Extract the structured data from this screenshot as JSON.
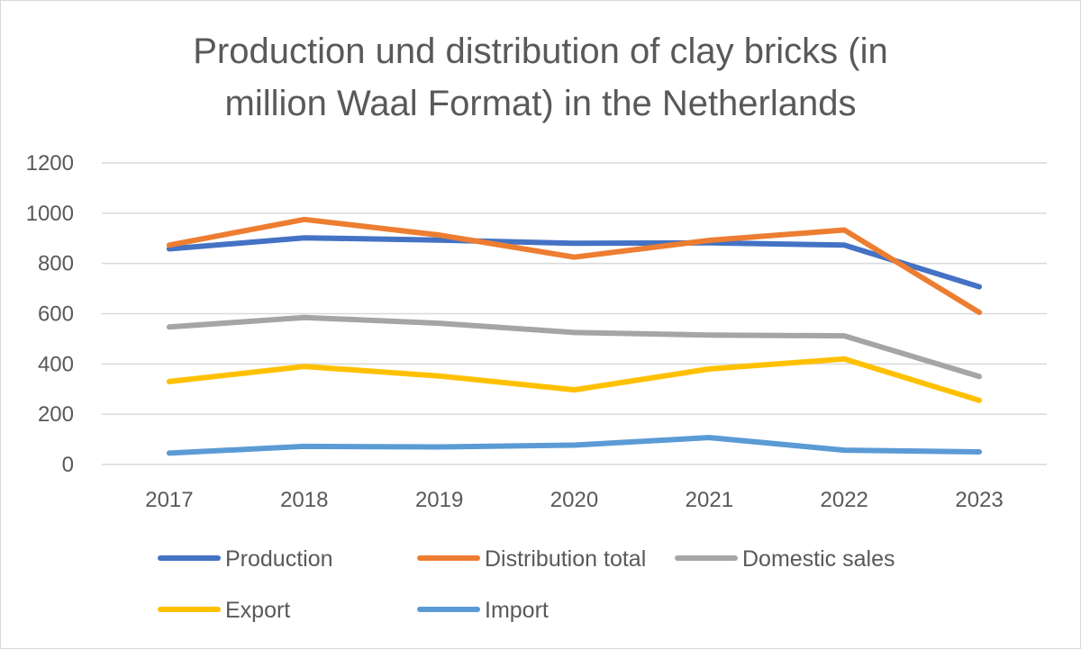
{
  "chart_data": {
    "type": "line",
    "title_lines": [
      "Production und distribution of clay bricks (in",
      "million Waal Format) in the Netherlands"
    ],
    "categories": [
      "2017",
      "2018",
      "2019",
      "2020",
      "2021",
      "2022",
      "2023"
    ],
    "y_ticks": [
      "0",
      "200",
      "400",
      "600",
      "800",
      "1000",
      "1200"
    ],
    "ylim": [
      0,
      1200
    ],
    "grid": true,
    "legend_position": "bottom",
    "series": [
      {
        "name": "Production",
        "color": "#4472c4",
        "values": [
          858,
          902,
          893,
          880,
          882,
          873,
          707
        ]
      },
      {
        "name": "Distribution total",
        "color": "#ed7d31",
        "values": [
          873,
          975,
          913,
          825,
          892,
          933,
          605
        ]
      },
      {
        "name": "Domestic sales",
        "color": "#a5a5a5",
        "values": [
          547,
          585,
          562,
          525,
          515,
          512,
          350
        ]
      },
      {
        "name": "Export",
        "color": "#ffc000",
        "values": [
          330,
          390,
          352,
          297,
          380,
          420,
          255
        ]
      },
      {
        "name": "Import",
        "color": "#5b9bd5",
        "values": [
          45,
          72,
          70,
          77,
          107,
          57,
          50
        ]
      }
    ]
  }
}
